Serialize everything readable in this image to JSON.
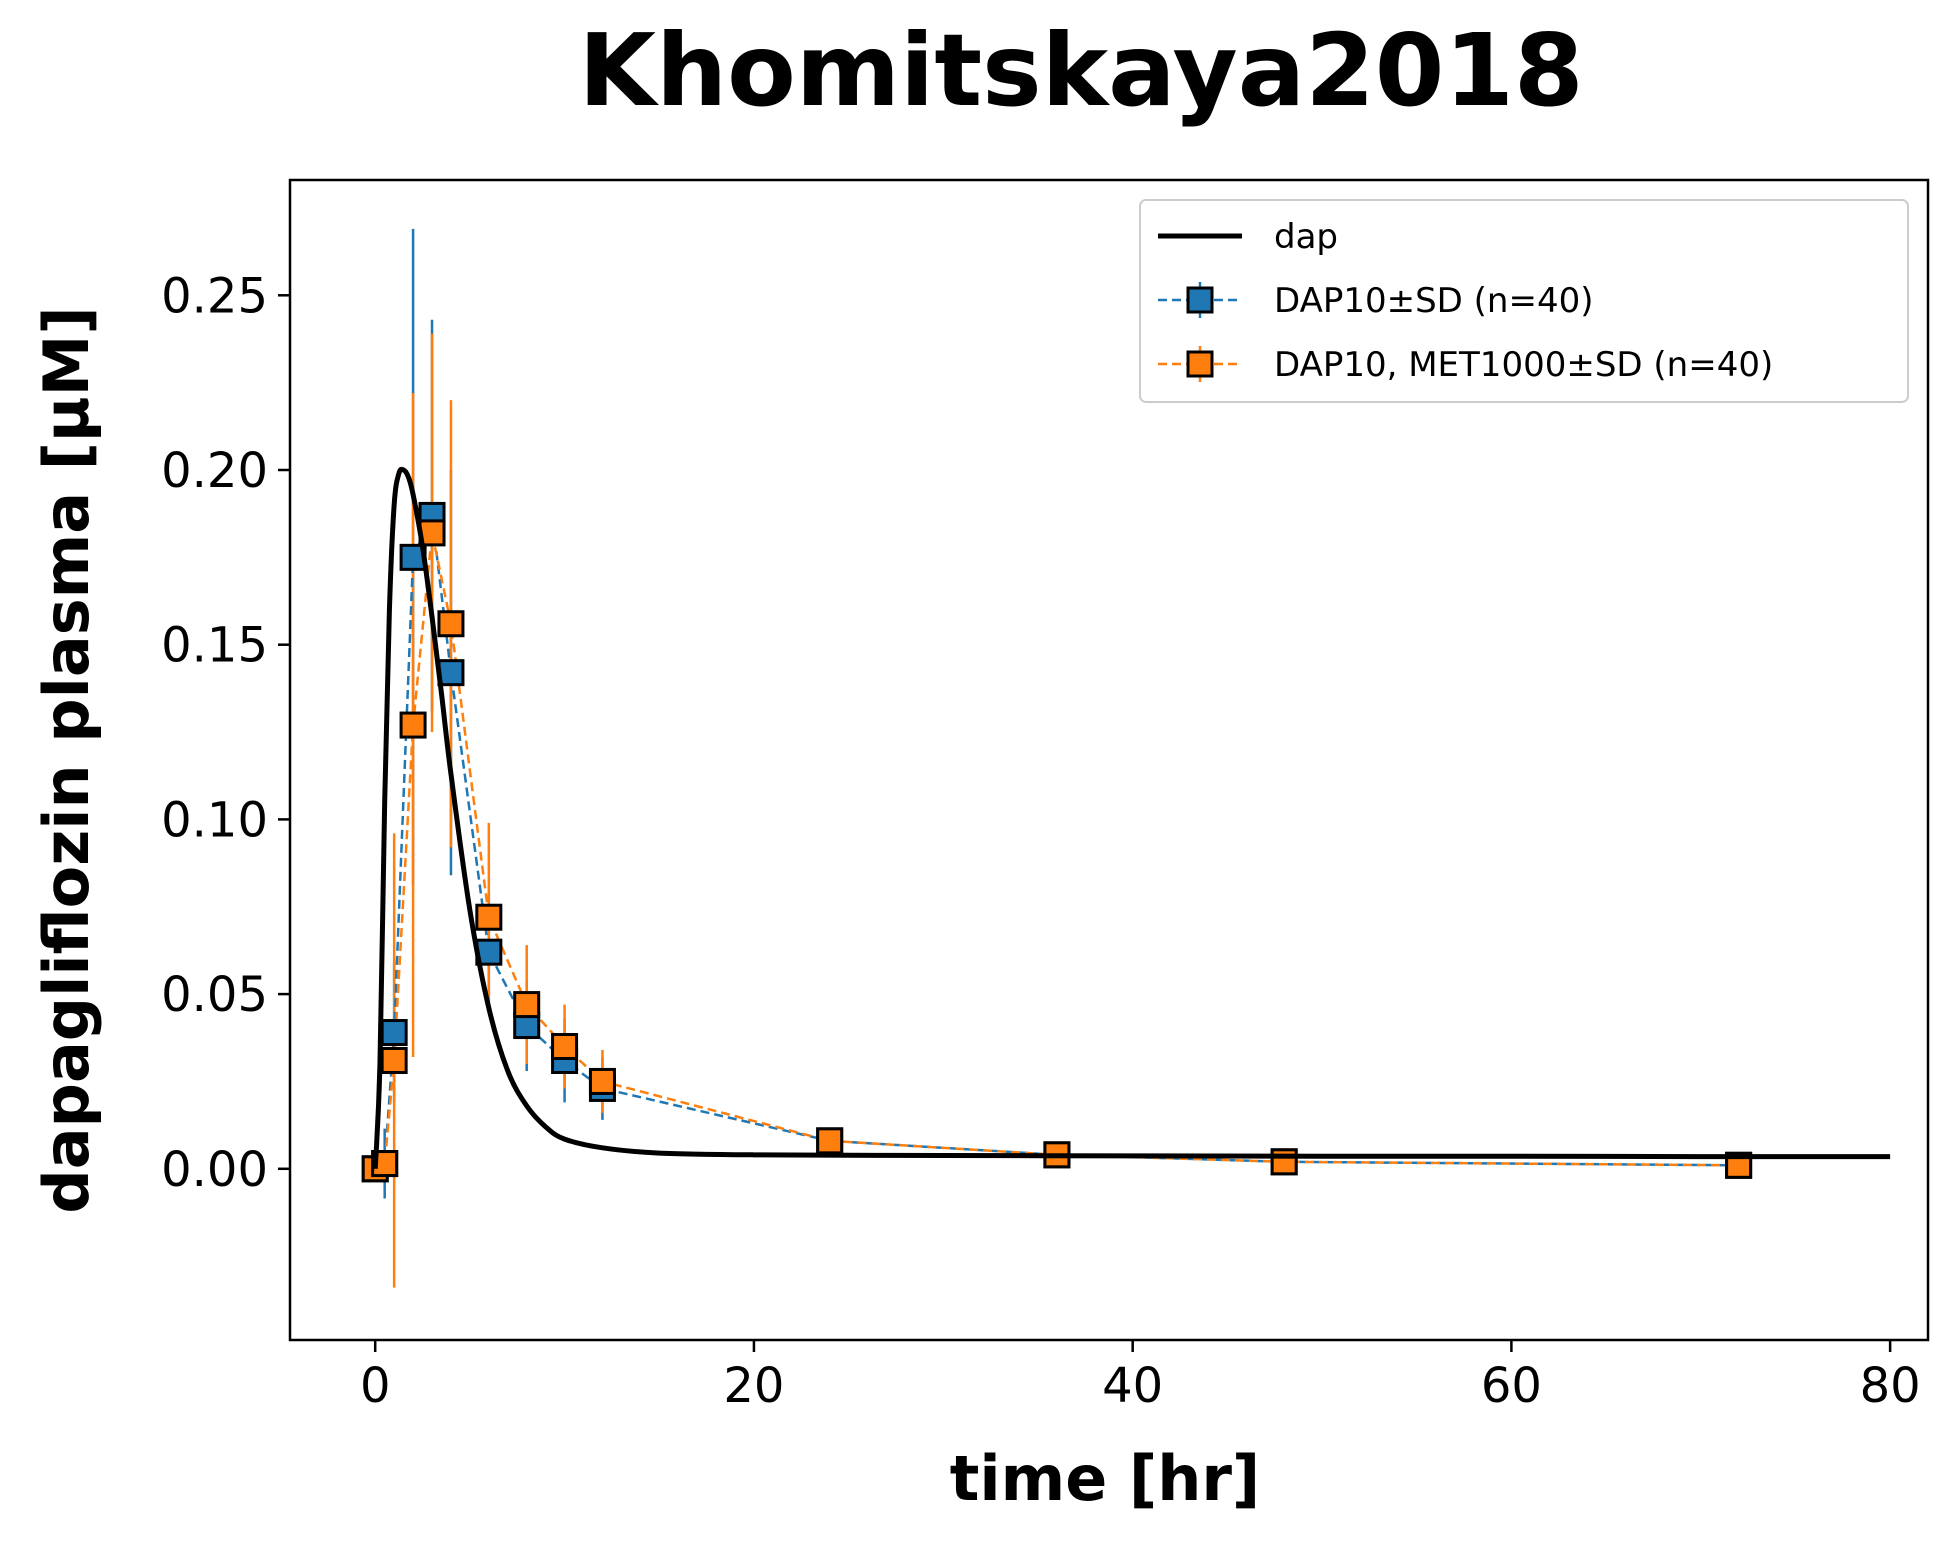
{
  "chart_data": {
    "type": "line",
    "title": "Khomitskaya2018",
    "xlabel": "time [hr]",
    "ylabel": "dapagliflozin plasma [µM]",
    "xlim": [
      -4.5,
      82
    ],
    "ylim": [
      -0.049,
      0.283
    ],
    "xticks": [
      0,
      20,
      40,
      60,
      80
    ],
    "yticks": [
      0.0,
      0.05,
      0.1,
      0.15,
      0.2,
      0.25
    ],
    "xtick_labels": [
      "0",
      "20",
      "40",
      "60",
      "80"
    ],
    "ytick_labels": [
      "0.00",
      "0.05",
      "0.10",
      "0.15",
      "0.20",
      "0.25"
    ],
    "grid": false,
    "legend_position": "top-right",
    "series": [
      {
        "name": "dap",
        "kind": "line",
        "color": "#000000",
        "x": [
          0,
          0.25,
          0.5,
          0.75,
          1.0,
          1.25,
          1.5,
          1.75,
          2.0,
          2.5,
          3.0,
          3.5,
          4.0,
          5.0,
          6.0,
          7.0,
          8.0,
          9.0,
          10.0,
          12.0,
          15.0,
          20.0,
          30.0,
          40.0,
          50.0,
          60.0,
          70.0,
          80.0
        ],
        "y": [
          0.0,
          0.03,
          0.105,
          0.16,
          0.19,
          0.199,
          0.2,
          0.198,
          0.193,
          0.178,
          0.158,
          0.136,
          0.113,
          0.074,
          0.046,
          0.028,
          0.018,
          0.012,
          0.0085,
          0.006,
          0.0045,
          0.004,
          0.0038,
          0.0037,
          0.0036,
          0.0036,
          0.0035,
          0.0035
        ]
      },
      {
        "name": "DAP10±SD (n=40)",
        "kind": "errorbar",
        "color": "#1f77b4",
        "x": [
          0,
          0.5,
          1,
          2,
          3,
          4,
          6,
          8,
          10,
          12,
          24,
          36,
          48,
          72
        ],
        "y": [
          0.0,
          0.0015,
          0.039,
          0.175,
          0.187,
          0.142,
          0.062,
          0.041,
          0.031,
          0.023,
          0.008,
          0.004,
          0.002,
          0.001
        ],
        "yerr": [
          0.0,
          0.01,
          0.02,
          0.094,
          0.056,
          0.058,
          0.017,
          0.013,
          0.012,
          0.009,
          0.003,
          0.002,
          0.001,
          0.001
        ]
      },
      {
        "name": "DAP10, MET1000±SD (n=40)",
        "kind": "errorbar",
        "color": "#ff7f0e",
        "x": [
          0,
          0.5,
          1,
          2,
          3,
          4,
          6,
          8,
          10,
          12,
          24,
          36,
          48,
          72
        ],
        "y": [
          0.0,
          0.0015,
          0.031,
          0.127,
          0.182,
          0.156,
          0.072,
          0.047,
          0.035,
          0.025,
          0.008,
          0.004,
          0.002,
          0.001
        ],
        "yerr": [
          0.0,
          0.002,
          0.065,
          0.095,
          0.057,
          0.064,
          0.027,
          0.017,
          0.012,
          0.009,
          0.003,
          0.002,
          0.001,
          0.001
        ]
      }
    ]
  }
}
